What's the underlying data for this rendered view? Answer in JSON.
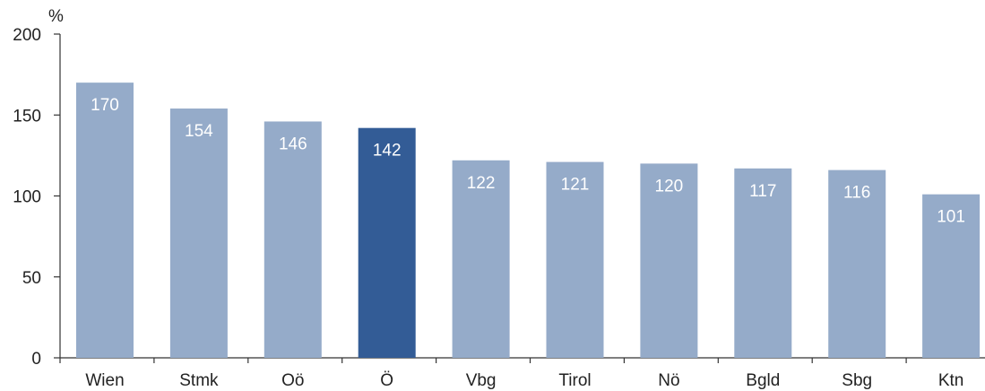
{
  "chart_data": {
    "type": "bar",
    "title": "",
    "xlabel": "",
    "ylabel": "%",
    "ylim": [
      0,
      200
    ],
    "yticks": [
      0,
      50,
      100,
      150,
      200
    ],
    "grid": false,
    "legend": "none",
    "categories": [
      "Wien",
      "Stmk",
      "Oö",
      "Ö",
      "Vbg",
      "Tirol",
      "Nö",
      "Bgld",
      "Sbg",
      "Ktn"
    ],
    "values": [
      170,
      154,
      146,
      142,
      122,
      121,
      120,
      117,
      116,
      101
    ],
    "data_labels": [
      "170",
      "154",
      "146",
      "142",
      "122",
      "121",
      "120",
      "117",
      "116",
      "101"
    ],
    "highlight_category": "Ö",
    "colors": {
      "bar": "#95abc9",
      "highlight": "#335c96",
      "label_text": "#ffffff",
      "axis": "#333333"
    }
  }
}
